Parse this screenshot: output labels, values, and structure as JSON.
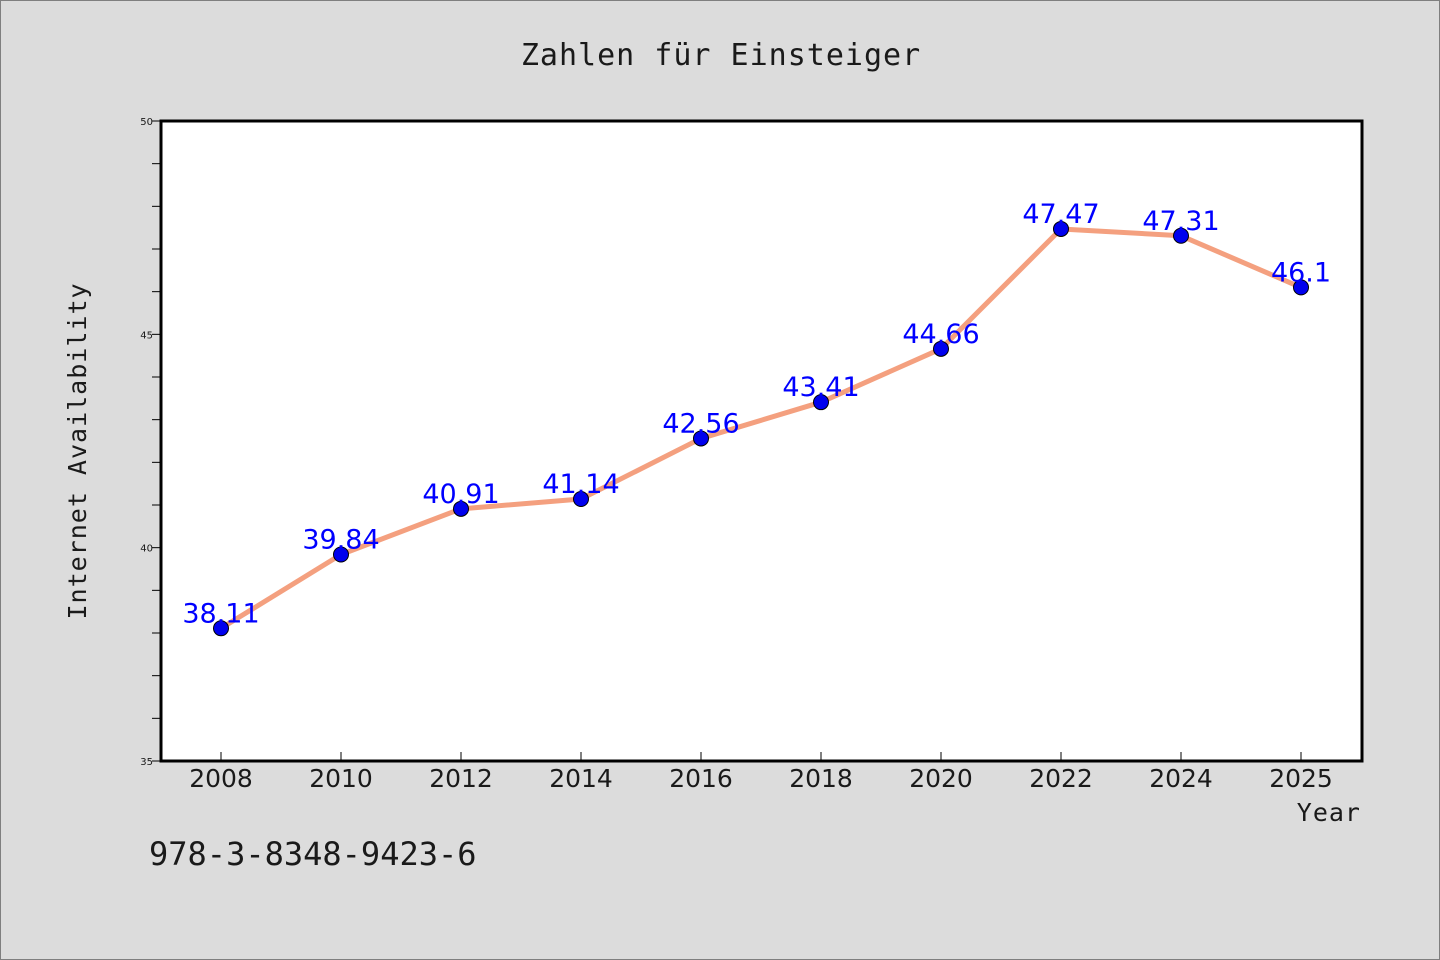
{
  "chart_data": {
    "type": "line",
    "title": "Zahlen für Einsteiger",
    "xlabel": "Year",
    "ylabel": "Internet Availability",
    "x": [
      "2008",
      "2010",
      "2012",
      "2014",
      "2016",
      "2018",
      "2020",
      "2022",
      "2024",
      "2025"
    ],
    "series": [
      {
        "values": [
          38.11,
          39.84,
          40.91,
          41.14,
          42.56,
          43.41,
          44.66,
          47.47,
          47.31,
          46.1
        ],
        "labels": [
          "38.11",
          "39.84",
          "40.91",
          "41.14",
          "42.56",
          "43.41",
          "44.66",
          "47.47",
          "47.31",
          "46.1"
        ],
        "line_color": "#f4a07f",
        "marker_color": "#0000ee",
        "label_color": "#0000ff"
      }
    ],
    "ylim": [
      35,
      50
    ],
    "yticks": [
      "35",
      "40",
      "45",
      "50"
    ],
    "grid": false,
    "legend": "none"
  },
  "footer": {
    "isbn": "978-3-8348-9423-6"
  },
  "colors": {
    "background": "#dcdcdc",
    "plot_background": "#ffffff",
    "axis": "#000000"
  }
}
